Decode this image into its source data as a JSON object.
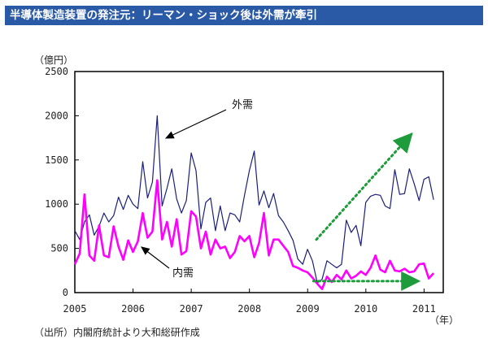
{
  "header": {
    "title": "半導体製造装置の発注元：リーマン・ショック後は外需が牽引"
  },
  "source": "（出所）内閣府統計より大和総研作成",
  "colors": {
    "title_bg": "#2a5aa6",
    "overseas": "#1b1f7a",
    "domestic": "#ff00ff",
    "arrow": "#1e9b3a"
  },
  "chart_data": {
    "type": "line",
    "title": "",
    "ylabel": "（億円）",
    "xlabel": "（年）",
    "ylim": [
      0,
      2500
    ],
    "xlim": [
      2005,
      2011.33
    ],
    "yticks": [
      0,
      500,
      1000,
      1500,
      2000,
      2500
    ],
    "xticks": [
      2005,
      2006,
      2007,
      2008,
      2009,
      2010,
      2011
    ],
    "xtick_labels": [
      "2005",
      "2006",
      "2007",
      "2008",
      "2009",
      "2010",
      "2011"
    ],
    "series": [
      {
        "name": "外需",
        "color": "#1b1f7a",
        "x_start": 2005.0,
        "step": 0.0833,
        "values": [
          700,
          600,
          800,
          880,
          650,
          750,
          900,
          800,
          870,
          1080,
          940,
          1100,
          1000,
          950,
          1480,
          1070,
          1250,
          2000,
          980,
          1180,
          1400,
          1060,
          900,
          1040,
          1580,
          1380,
          720,
          1020,
          1070,
          700,
          980,
          700,
          900,
          880,
          800,
          1100,
          1380,
          1600,
          990,
          1150,
          960,
          1120,
          870,
          800,
          700,
          590,
          380,
          320,
          490,
          360,
          110,
          150,
          360,
          320,
          280,
          320,
          820,
          680,
          760,
          530,
          1020,
          1090,
          1110,
          1100,
          980,
          950,
          1390,
          1110,
          1120,
          1400,
          1230,
          1040,
          1280,
          1310,
          1050
        ]
      },
      {
        "name": "内需",
        "color": "#ff00ff",
        "x_start": 2005.0,
        "step": 0.0833,
        "values": [
          320,
          440,
          1110,
          420,
          360,
          760,
          420,
          400,
          750,
          520,
          370,
          590,
          460,
          580,
          900,
          620,
          690,
          1270,
          600,
          800,
          520,
          830,
          430,
          470,
          920,
          860,
          500,
          690,
          430,
          600,
          500,
          520,
          390,
          460,
          640,
          580,
          640,
          400,
          560,
          900,
          420,
          600,
          600,
          530,
          460,
          300,
          280,
          250,
          230,
          170,
          100,
          40,
          180,
          120,
          200,
          150,
          250,
          160,
          190,
          240,
          200,
          280,
          420,
          260,
          230,
          360,
          250,
          240,
          270,
          230,
          240,
          320,
          330,
          160,
          220
        ]
      }
    ],
    "annotations": [
      {
        "text": "外需",
        "target_series": "外需"
      },
      {
        "text": "内需",
        "target_series": "内需"
      }
    ]
  }
}
